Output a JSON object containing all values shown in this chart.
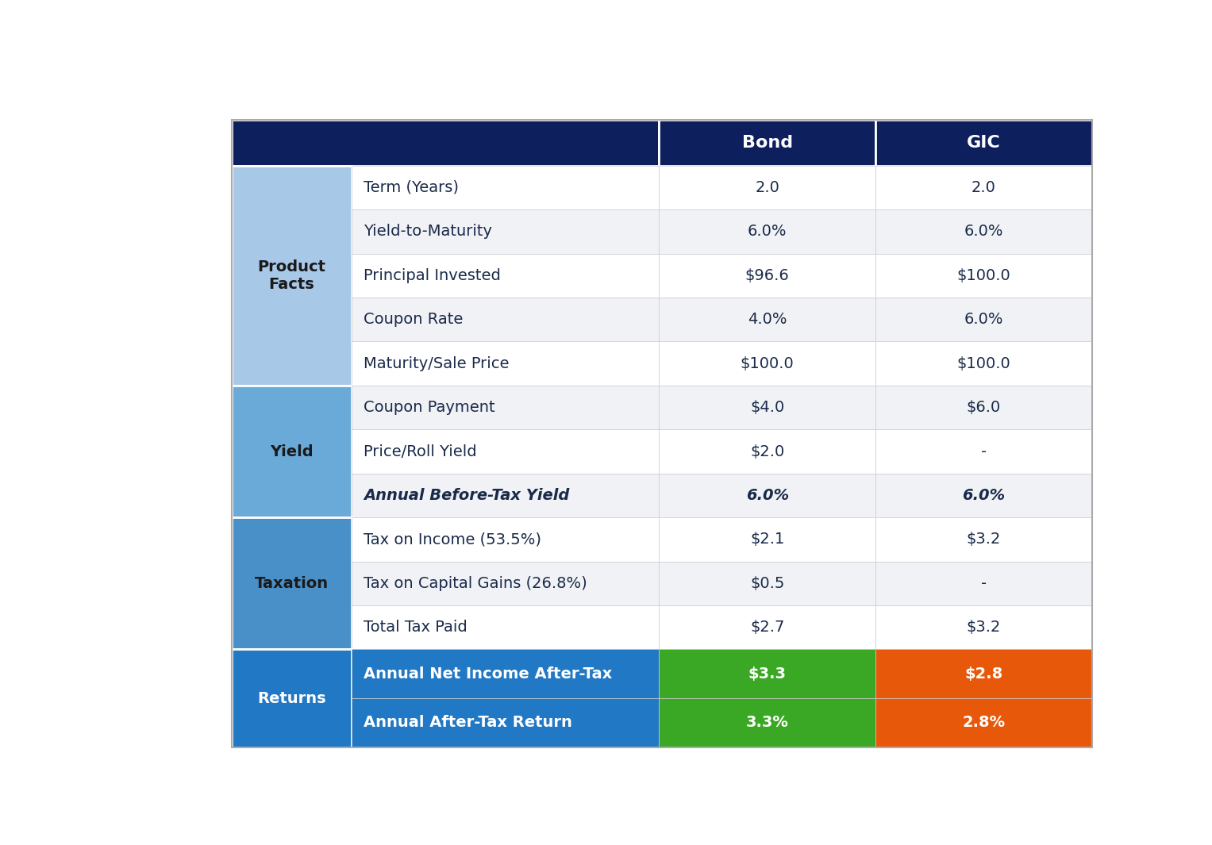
{
  "header": {
    "bond_label": "Bond",
    "gic_label": "GIC",
    "bg_color": "#0D1F5C",
    "text_color": "#FFFFFF"
  },
  "sections": [
    {
      "label": "Product\nFacts",
      "bg_color": "#A8C8E8",
      "text_color": "#1a1a1a",
      "rows": [
        {
          "label": "Term (Years)",
          "bond": "2.0",
          "gic": "2.0",
          "bold": false,
          "italic": false
        },
        {
          "label": "Yield-to-Maturity",
          "bond": "6.0%",
          "gic": "6.0%",
          "bold": false,
          "italic": false
        },
        {
          "label": "Principal Invested",
          "bond": "$96.6",
          "gic": "$100.0",
          "bold": false,
          "italic": false
        },
        {
          "label": "Coupon Rate",
          "bond": "4.0%",
          "gic": "6.0%",
          "bold": false,
          "italic": false
        },
        {
          "label": "Maturity/Sale Price",
          "bond": "$100.0",
          "gic": "$100.0",
          "bold": false,
          "italic": false
        }
      ]
    },
    {
      "label": "Yield",
      "bg_color": "#6AAAD8",
      "text_color": "#1a1a1a",
      "rows": [
        {
          "label": "Coupon Payment",
          "bond": "$4.0",
          "gic": "$6.0",
          "bold": false,
          "italic": false
        },
        {
          "label": "Price/Roll Yield",
          "bond": "$2.0",
          "gic": "-",
          "bold": false,
          "italic": false
        },
        {
          "label": "Annual Before-Tax Yield",
          "bond": "6.0%",
          "gic": "6.0%",
          "bold": true,
          "italic": true
        }
      ]
    },
    {
      "label": "Taxation",
      "bg_color": "#4A90C8",
      "text_color": "#1a1a1a",
      "rows": [
        {
          "label": "Tax on Income (53.5%)",
          "bond": "$2.1",
          "gic": "$3.2",
          "bold": false,
          "italic": false
        },
        {
          "label": "Tax on Capital Gains (26.8%)",
          "bond": "$0.5",
          "gic": "-",
          "bold": false,
          "italic": false
        },
        {
          "label": "Total Tax Paid",
          "bond": "$2.7",
          "gic": "$3.2",
          "bold": false,
          "italic": false
        }
      ]
    },
    {
      "label": "Returns",
      "bg_color": "#2178C4",
      "text_color": "#FFFFFF",
      "rows": [
        {
          "label": "Annual Net Income After-Tax",
          "bond": "$3.3",
          "gic": "$2.8",
          "bold": true,
          "italic": false,
          "bond_bg": "#3BA825",
          "gic_bg": "#E8580A"
        },
        {
          "label": "Annual After-Tax Return",
          "bond": "3.3%",
          "gic": "2.8%",
          "bold": true,
          "italic": false,
          "bond_bg": "#3BA825",
          "gic_bg": "#E8580A"
        }
      ]
    }
  ],
  "dark_navy": "#0D1F5C",
  "row_white": "#FFFFFF",
  "row_gray": "#F0F2F5",
  "green": "#3BA825",
  "orange": "#E8580A"
}
